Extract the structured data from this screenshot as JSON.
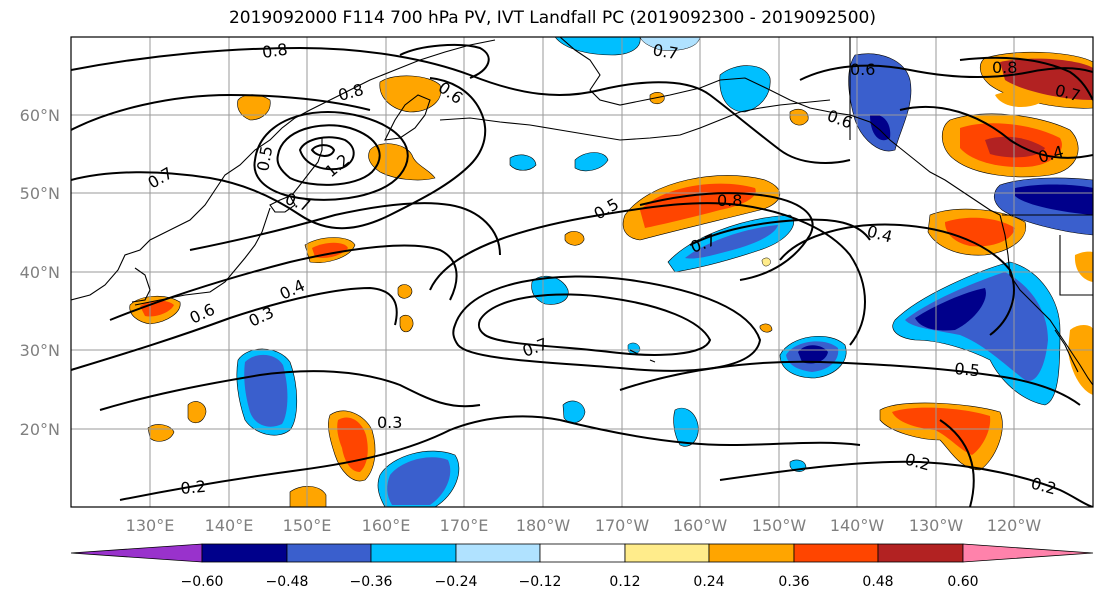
{
  "title": "2019092000 F114 700 hPa PV, IVT Landfall PC (2019092300 - 2019092500)",
  "map": {
    "lat_labels": [
      "60°N",
      "50°N",
      "40°N",
      "30°N",
      "20°N"
    ],
    "lon_labels": [
      "130°E",
      "140°E",
      "150°E",
      "160°E",
      "170°E",
      "180°W",
      "170°W",
      "160°W",
      "150°W",
      "140°W",
      "130°W",
      "120°W"
    ],
    "contour_labels": [
      "0.8",
      "0.8",
      "0.6",
      "0.7",
      "0.6",
      "0.6",
      "0.8",
      "0.7",
      "0.7",
      "0.5",
      "1.2",
      "0.7",
      "0.5",
      "0.8",
      "0.4",
      "0.7",
      "0.4",
      "0.4",
      "0.3",
      "0.6",
      "0.7",
      "0.5",
      "0.3",
      "0.2",
      "0.2",
      "0.2"
    ]
  },
  "colorbar": {
    "colors": [
      "#9932cc",
      "#00008b",
      "#3a5fcd",
      "#00bfff",
      "#b0e2ff",
      "#ffffff",
      "#ffec8b",
      "#ffa500",
      "#ff4500",
      "#b22222",
      "#ff82ab"
    ],
    "ticks": [
      "−0.60",
      "−0.48",
      "−0.36",
      "−0.24",
      "−0.12",
      "0.12",
      "0.24",
      "0.36",
      "0.48",
      "0.60"
    ]
  }
}
